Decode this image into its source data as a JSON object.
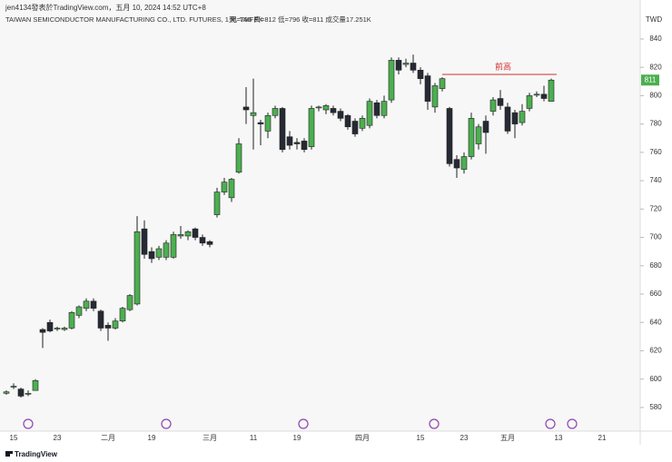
{
  "header": {
    "credit": "jen4134發表於TradingView.com，五月 10, 2024 14:52 UTC+8",
    "symbol": "TAIWAN SEMICONDUCTOR MANUFACTURING CO., LTD. FUTURES, 1天, TAIFEX",
    "ohlc": "開=796  高=812  低=796  收=811  成交量17.251K"
  },
  "footer": {
    "brand": "TradingView"
  },
  "chart_data": {
    "type": "candlestick",
    "currency": "TWD",
    "up_color": "#4caf50",
    "down_color": "#262a33",
    "categories": [
      null,
      "15",
      null,
      null,
      null,
      null,
      null,
      "23",
      null,
      null,
      null,
      null,
      null,
      null,
      "二月",
      null,
      null,
      null,
      null,
      null,
      "19",
      null,
      null,
      null,
      null,
      null,
      null,
      null,
      "三月",
      null,
      null,
      null,
      null,
      null,
      "11",
      null,
      null,
      null,
      null,
      null,
      "19",
      null,
      null,
      null,
      null,
      null,
      null,
      null,
      null,
      "四月",
      null,
      null,
      null,
      null,
      null,
      null,
      null,
      "15",
      null,
      null,
      null,
      null,
      null,
      "23",
      null,
      null,
      null,
      null,
      null,
      "五月",
      null,
      null,
      null,
      null,
      null,
      null,
      "13",
      null,
      null,
      null,
      null,
      null,
      "21"
    ],
    "open": [
      590,
      595,
      593,
      590,
      592,
      635,
      640,
      636,
      635,
      636,
      645,
      650,
      655,
      648,
      638,
      636,
      641,
      649,
      653,
      706,
      690,
      686,
      686,
      686,
      701,
      701,
      706,
      700,
      697,
      716,
      732,
      728,
      746,
      792,
      786,
      781,
      775,
      786,
      791,
      771,
      767,
      768,
      764,
      792,
      790,
      791,
      789,
      786,
      782,
      777,
      779,
      795,
      786,
      797,
      825,
      822,
      823,
      818,
      814,
      792,
      805,
      791,
      755,
      748,
      757,
      766,
      782,
      789,
      798,
      792,
      788,
      781,
      791,
      801,
      801,
      796,
      null,
      null,
      null,
      null,
      null,
      null,
      null
    ],
    "high": [
      592,
      597,
      594,
      592,
      600,
      636,
      642,
      637,
      637,
      648,
      652,
      657,
      657,
      649,
      640,
      643,
      651,
      660,
      715,
      712,
      693,
      694,
      698,
      704,
      708,
      705,
      707,
      702,
      698,
      735,
      742,
      742,
      770,
      806,
      812,
      783,
      788,
      793,
      792,
      775,
      770,
      770,
      793,
      793,
      794,
      793,
      791,
      787,
      784,
      786,
      798,
      797,
      800,
      827,
      827,
      826,
      829,
      820,
      816,
      809,
      813,
      792,
      758,
      760,
      788,
      780,
      786,
      799,
      804,
      795,
      790,
      794,
      802,
      803,
      807,
      812,
      null,
      null,
      null,
      null,
      null,
      null,
      null
    ],
    "low": [
      589,
      593,
      587,
      588,
      592,
      622,
      633,
      634,
      634,
      635,
      643,
      648,
      648,
      634,
      627,
      635,
      640,
      648,
      652,
      685,
      682,
      684,
      684,
      685,
      699,
      698,
      698,
      694,
      693,
      714,
      730,
      725,
      745,
      780,
      762,
      765,
      770,
      784,
      760,
      762,
      762,
      760,
      762,
      789,
      787,
      786,
      782,
      776,
      771,
      775,
      777,
      784,
      784,
      795,
      815,
      820,
      816,
      808,
      790,
      788,
      803,
      750,
      742,
      745,
      755,
      762,
      759,
      786,
      790,
      773,
      770,
      779,
      789,
      799,
      796,
      796,
      null,
      null,
      null,
      null,
      null,
      null,
      null
    ],
    "close": [
      591,
      595,
      588,
      590,
      599,
      633,
      634,
      636,
      636,
      647,
      651,
      655,
      650,
      636,
      636,
      641,
      650,
      659,
      704,
      688,
      685,
      692,
      696,
      702,
      702,
      704,
      700,
      696,
      695,
      732,
      739,
      741,
      766,
      790,
      788,
      780,
      786,
      791,
      762,
      765,
      766,
      762,
      791,
      792,
      793,
      788,
      784,
      778,
      773,
      784,
      796,
      786,
      796,
      825,
      818,
      823,
      818,
      812,
      796,
      807,
      812,
      752,
      749,
      757,
      784,
      778,
      774,
      797,
      793,
      775,
      780,
      789,
      800,
      801,
      798,
      811,
      null,
      null,
      null,
      null,
      null,
      null,
      null
    ],
    "ylim": [
      563.3,
      867.5
    ],
    "yticks": [
      580,
      600,
      620,
      640,
      660,
      680,
      700,
      720,
      740,
      760,
      780,
      800,
      820,
      840
    ],
    "annotation": {
      "text": "前高",
      "value": 815,
      "color": "#d32f2f"
    }
  }
}
